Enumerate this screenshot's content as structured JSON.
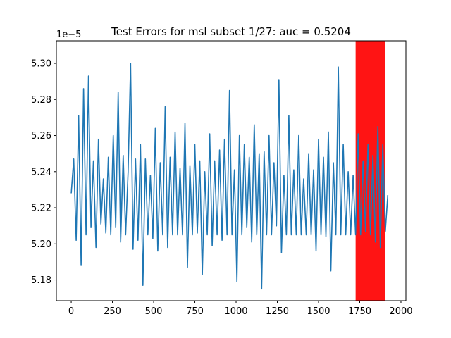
{
  "chart_data": {
    "type": "line",
    "title": "Test Errors for msl subset 1/27: auc = 0.5204",
    "xlabel": "",
    "ylabel": "",
    "y_offset_label": "1e−5",
    "xlim": [
      -90,
      2030
    ],
    "ylim": [
      5.1685,
      5.3125
    ],
    "x_ticks": [
      0,
      250,
      500,
      750,
      1000,
      1250,
      1500,
      1750,
      2000
    ],
    "x_tick_labels": [
      "0",
      "250",
      "500",
      "750",
      "1000",
      "1250",
      "1500",
      "1750",
      "2000"
    ],
    "y_ticks": [
      5.18,
      5.2,
      5.22,
      5.24,
      5.26,
      5.28,
      5.3
    ],
    "y_tick_labels": [
      "5.18",
      "5.20",
      "5.22",
      "5.24",
      "5.26",
      "5.28",
      "5.30"
    ],
    "grid": false,
    "series": [
      {
        "color": "#1f77b4",
        "x": [
          0,
          15,
          30,
          45,
          60,
          75,
          90,
          105,
          120,
          135,
          150,
          165,
          180,
          195,
          210,
          225,
          240,
          255,
          270,
          285,
          300,
          315,
          330,
          345,
          360,
          375,
          390,
          405,
          420,
          435,
          450,
          465,
          480,
          495,
          510,
          525,
          540,
          555,
          570,
          585,
          600,
          615,
          630,
          645,
          660,
          675,
          690,
          705,
          720,
          735,
          750,
          765,
          780,
          795,
          810,
          825,
          840,
          855,
          870,
          885,
          900,
          915,
          930,
          945,
          960,
          975,
          990,
          1005,
          1020,
          1035,
          1050,
          1065,
          1080,
          1095,
          1110,
          1125,
          1140,
          1155,
          1170,
          1185,
          1200,
          1215,
          1230,
          1245,
          1260,
          1275,
          1290,
          1305,
          1320,
          1335,
          1350,
          1365,
          1380,
          1395,
          1410,
          1425,
          1440,
          1455,
          1470,
          1485,
          1500,
          1515,
          1530,
          1545,
          1560,
          1575,
          1590,
          1605,
          1620,
          1635,
          1650,
          1665,
          1680,
          1695,
          1710,
          1725,
          1740,
          1755,
          1770,
          1785,
          1800,
          1815,
          1830,
          1845,
          1860,
          1875,
          1890,
          1905,
          1920
        ],
        "y": [
          5.228,
          5.247,
          5.202,
          5.271,
          5.188,
          5.286,
          5.205,
          5.293,
          5.209,
          5.246,
          5.198,
          5.258,
          5.211,
          5.236,
          5.206,
          5.248,
          5.205,
          5.26,
          5.209,
          5.284,
          5.201,
          5.249,
          5.205,
          5.24,
          5.3,
          5.197,
          5.247,
          5.202,
          5.255,
          5.177,
          5.247,
          5.205,
          5.238,
          5.203,
          5.264,
          5.196,
          5.245,
          5.205,
          5.276,
          5.198,
          5.248,
          5.205,
          5.262,
          5.205,
          5.242,
          5.205,
          5.267,
          5.187,
          5.243,
          5.205,
          5.255,
          5.206,
          5.246,
          5.183,
          5.24,
          5.205,
          5.261,
          5.199,
          5.246,
          5.205,
          5.252,
          5.202,
          5.258,
          5.205,
          5.285,
          5.205,
          5.241,
          5.179,
          5.26,
          5.205,
          5.255,
          5.209,
          5.248,
          5.201,
          5.266,
          5.205,
          5.25,
          5.175,
          5.251,
          5.205,
          5.26,
          5.205,
          5.245,
          5.21,
          5.291,
          5.195,
          5.238,
          5.205,
          5.271,
          5.205,
          5.241,
          5.205,
          5.26,
          5.205,
          5.236,
          5.205,
          5.25,
          5.205,
          5.241,
          5.196,
          5.258,
          5.205,
          5.248,
          5.204,
          5.262,
          5.185,
          5.245,
          5.205,
          5.298,
          5.205,
          5.255,
          5.205,
          5.24,
          5.205,
          5.238,
          5.205,
          5.261,
          5.205,
          5.246,
          5.207,
          5.255,
          5.205,
          5.249,
          5.201,
          5.265,
          5.198,
          5.255,
          5.207,
          5.227
        ]
      }
    ],
    "highlight_regions": [
      {
        "x_range": [
          1725,
          1905
        ],
        "color": "#ff0000",
        "opacity": 0.92
      }
    ]
  }
}
